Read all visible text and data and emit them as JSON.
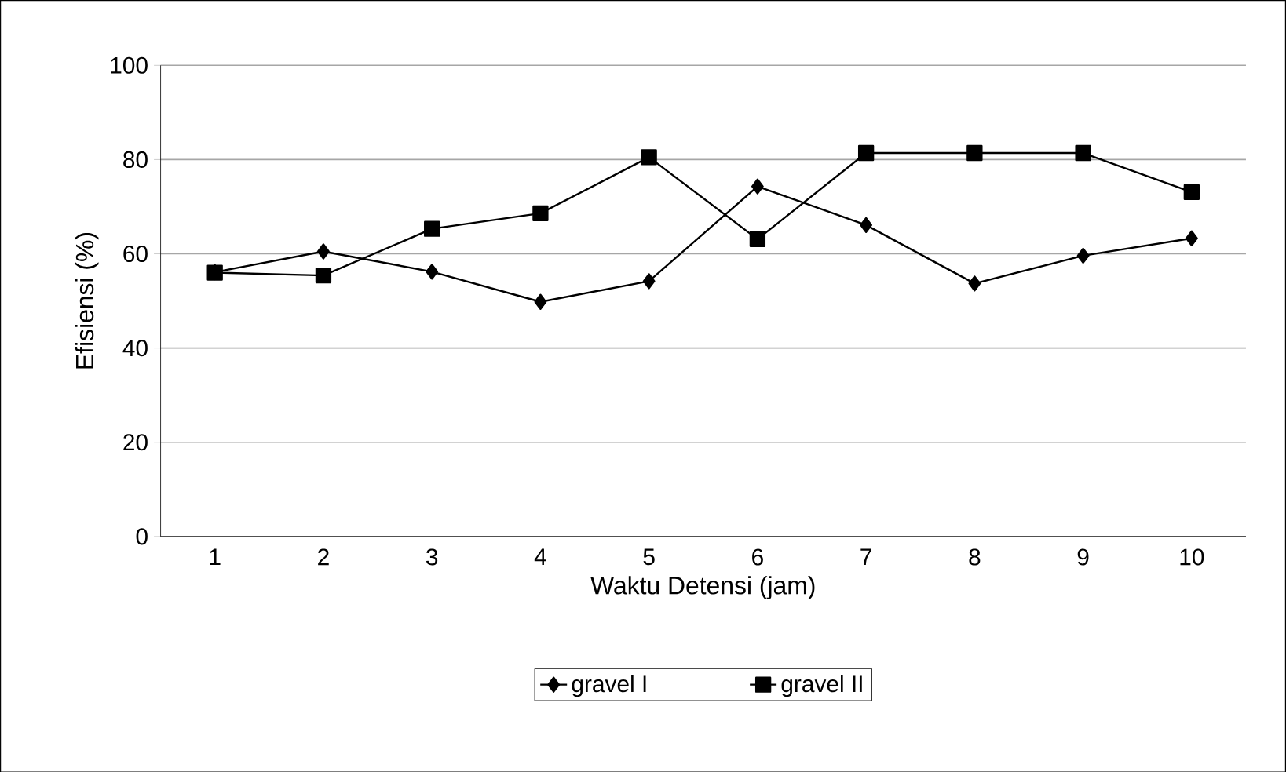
{
  "chart_data": {
    "type": "line",
    "xlabel": "Waktu Detensi (jam)",
    "ylabel": "Efisiensi (%)",
    "categories": [
      "1",
      "2",
      "3",
      "4",
      "5",
      "6",
      "7",
      "8",
      "9",
      "10"
    ],
    "series": [
      {
        "name": "gravel I",
        "color": "#000000",
        "marker": "diamond",
        "values": [
          56.1,
          60.5,
          56.2,
          49.8,
          54.2,
          74.3,
          66.1,
          53.7,
          59.6,
          63.3
        ]
      },
      {
        "name": "gravel II",
        "color": "#000000",
        "marker": "square",
        "values": [
          56,
          55.4,
          65.3,
          68.6,
          80.5,
          63.1,
          81.4,
          81.4,
          81.4,
          73.1
        ]
      }
    ],
    "ylim": [
      0,
      100
    ],
    "yticks": [
      0,
      20,
      40,
      60,
      80,
      100
    ],
    "grid": "y",
    "legend": "bottom",
    "line_style": "solid"
  }
}
